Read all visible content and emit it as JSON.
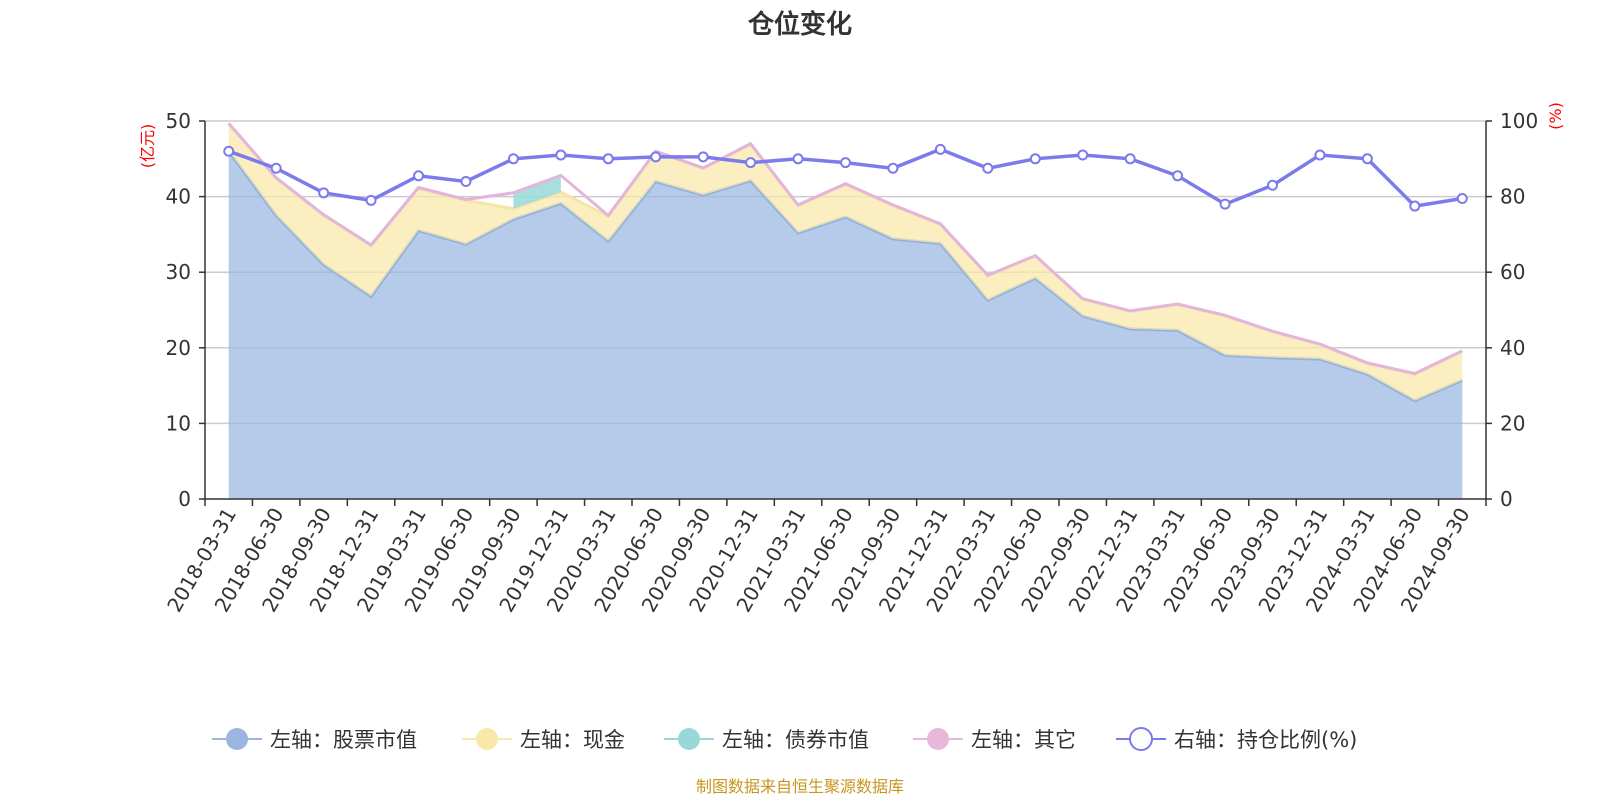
{
  "chart_data": {
    "type": "area",
    "title": "仓位变化",
    "left_axis_unit": "(亿元)",
    "right_axis_unit": "(%)",
    "ylim_left": [
      0,
      50
    ],
    "yticks_left": [
      "0",
      "10",
      "20",
      "30",
      "40",
      "50"
    ],
    "ylim_right": [
      0,
      100
    ],
    "yticks_right": [
      "0",
      "20",
      "40",
      "60",
      "80",
      "100"
    ],
    "categories": [
      "2018-03-31",
      "2018-06-30",
      "2018-09-30",
      "2018-12-31",
      "2019-03-31",
      "2019-06-30",
      "2019-09-30",
      "2019-12-31",
      "2020-03-31",
      "2020-06-30",
      "2020-09-30",
      "2020-12-31",
      "2021-03-31",
      "2021-06-30",
      "2021-09-30",
      "2021-12-31",
      "2022-03-31",
      "2022-06-30",
      "2022-09-30",
      "2022-12-31",
      "2023-03-31",
      "2023-06-30",
      "2023-09-30",
      "2023-12-31",
      "2024-03-31",
      "2024-06-30",
      "2024-09-30"
    ],
    "series": [
      {
        "name": "左轴：股票市值",
        "axis": "left",
        "color": "#9ab5e0",
        "values": [
          46,
          37.5,
          31,
          26.8,
          35.5,
          33.7,
          37,
          39.1,
          34.1,
          42,
          40.2,
          42.1,
          35.2,
          37.3,
          34.4,
          33.8,
          26.3,
          29.2,
          24.2,
          22.5,
          22.3,
          19,
          18.7,
          18.5,
          16.5,
          13,
          15.7
        ]
      },
      {
        "name": "左轴：现金",
        "axis": "left",
        "color": "#fae8a8",
        "values": [
          3.6,
          4.9,
          6.5,
          6.7,
          5.6,
          5.8,
          1.4,
          1.5,
          3.3,
          3.9,
          3.5,
          4.8,
          3.6,
          4.3,
          4.4,
          2.5,
          3.2,
          2.9,
          2.2,
          2.3,
          3.4,
          5.2,
          3.4,
          1.9,
          1.4,
          3.5,
          3.8
        ]
      },
      {
        "name": "左轴：债券市值",
        "axis": "left",
        "color": "#98d8d8",
        "values": [
          0,
          0,
          0,
          0,
          0,
          0,
          2,
          2.1,
          0,
          0,
          0,
          0,
          0,
          0,
          0,
          0,
          0,
          0,
          0,
          0,
          0,
          0,
          0,
          0,
          0,
          0,
          0
        ]
      },
      {
        "name": "左轴：其它",
        "axis": "left",
        "color": "#e8b8dc",
        "values": [
          0.1,
          0.1,
          0.1,
          0.1,
          0.1,
          0.1,
          0.1,
          0.1,
          0.1,
          0.1,
          0.1,
          0.1,
          0.1,
          0.1,
          0.1,
          0.1,
          0.1,
          0.1,
          0.1,
          0.1,
          0.1,
          0.1,
          0.1,
          0.1,
          0.1,
          0.1,
          0.1
        ]
      },
      {
        "name": "右轴：持仓比例(%)",
        "axis": "right",
        "color": "#7b7bec",
        "values": [
          92,
          87.5,
          81,
          79,
          85.5,
          84,
          90,
          91,
          90,
          90.5,
          90.5,
          89,
          90,
          89,
          87.5,
          92.5,
          87.5,
          90,
          91,
          90,
          85.5,
          78,
          83,
          91,
          90,
          77.5,
          79.5
        ]
      }
    ],
    "legend_position": "bottom-center",
    "footnote": "制图数据来自恒生聚源数据库"
  }
}
